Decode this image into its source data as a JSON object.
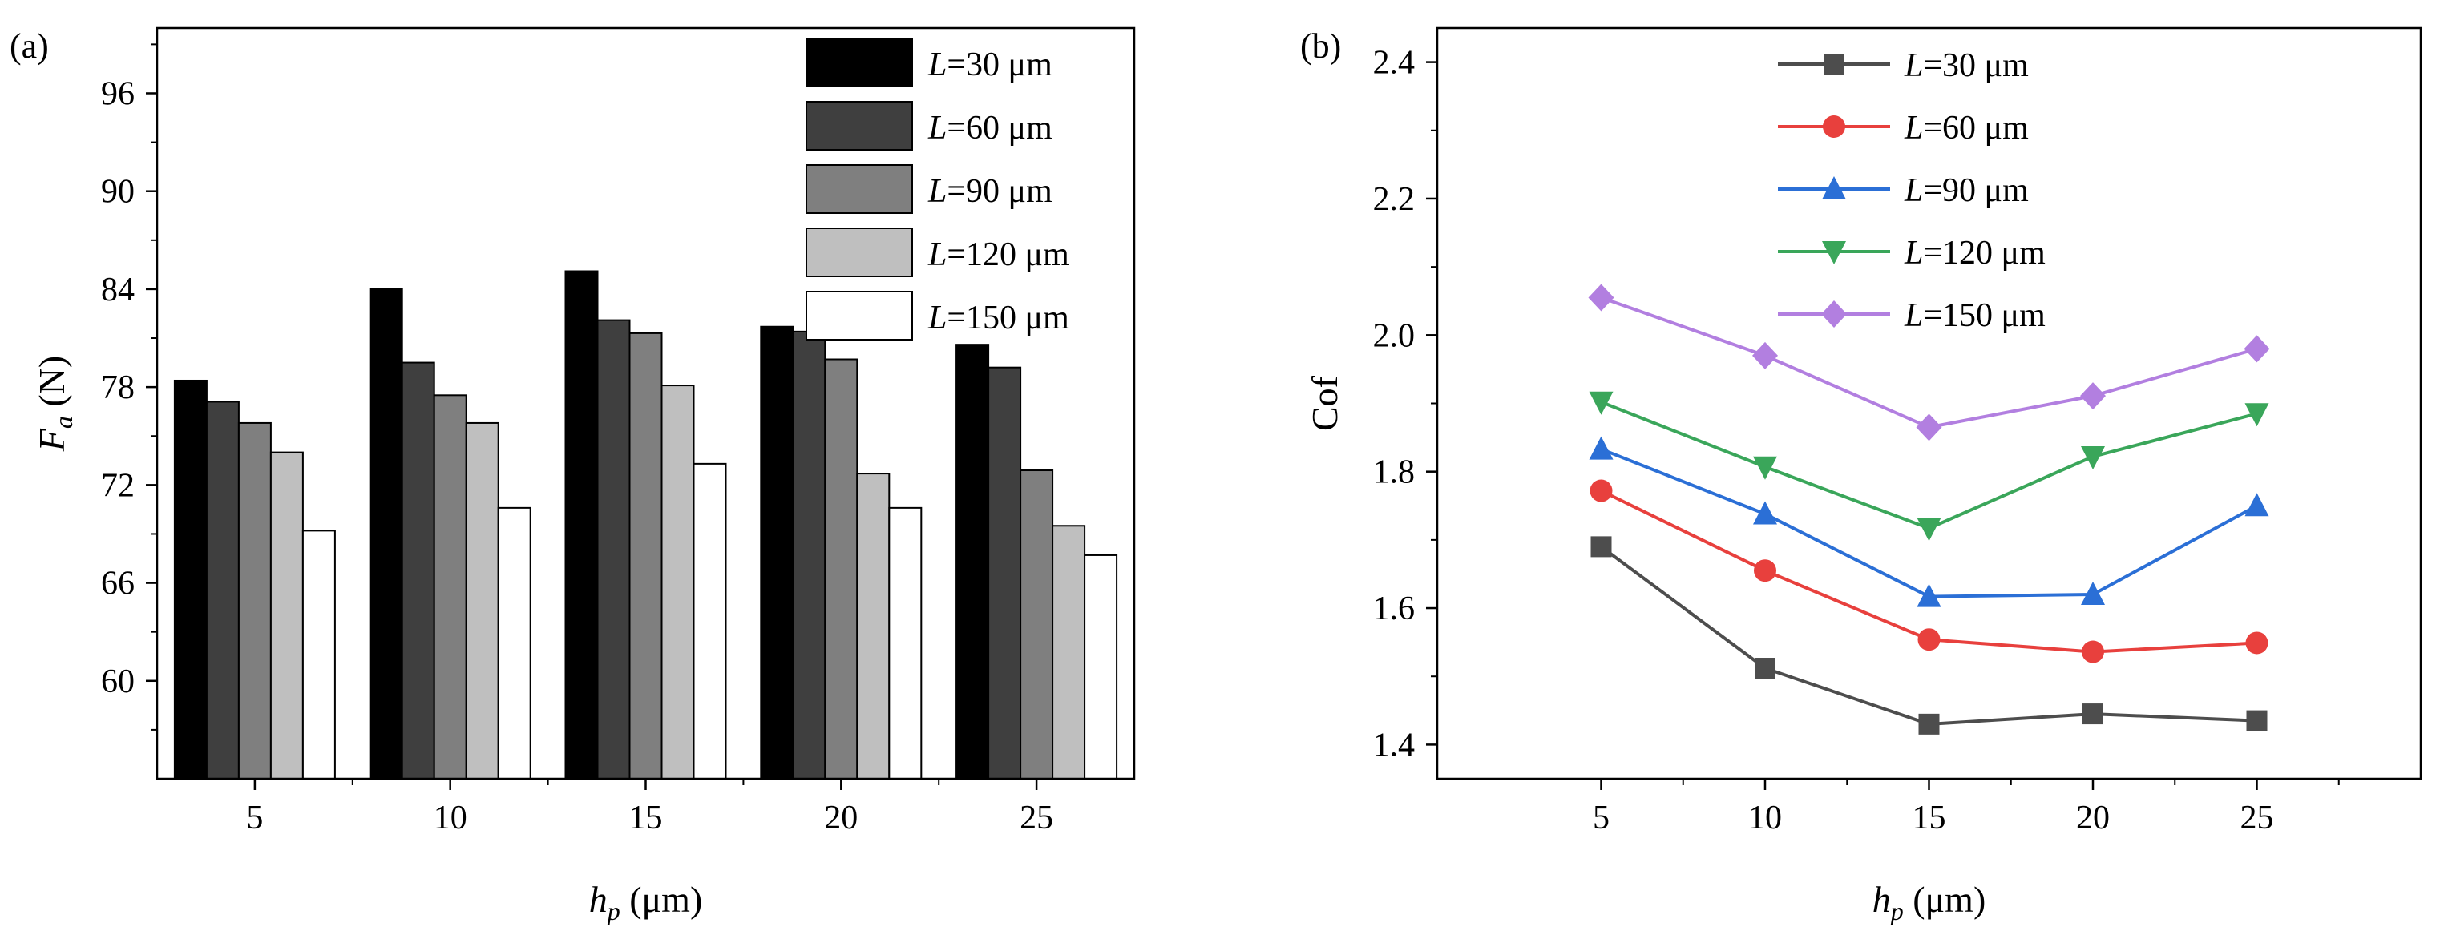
{
  "charts": [
    {
      "panel_label": "(a)",
      "chart_data": {
        "type": "bar",
        "categories": [
          "5",
          "10",
          "15",
          "20",
          "25"
        ],
        "series": [
          {
            "name": "L=30 μm",
            "name_var": "L",
            "name_rest": "=30 μm",
            "color": "#000000",
            "values": [
              78.4,
              84.0,
              85.1,
              81.7,
              80.6
            ]
          },
          {
            "name": "L=60 μm",
            "name_var": "L",
            "name_rest": "=60 μm",
            "color": "#3f3f3f",
            "values": [
              77.1,
              79.5,
              82.1,
              81.4,
              79.2
            ]
          },
          {
            "name": "L=90 μm",
            "name_var": "L",
            "name_rest": "=90 μm",
            "color": "#7f7f7f",
            "values": [
              75.8,
              77.5,
              81.3,
              79.7,
              72.9
            ]
          },
          {
            "name": "L=120 μm",
            "name_var": "L",
            "name_rest": "=120 μm",
            "color": "#bfbfbf",
            "values": [
              74.0,
              75.8,
              78.1,
              72.7,
              69.5
            ]
          },
          {
            "name": "L=150 μm",
            "name_var": "L",
            "name_rest": "=150 μm",
            "color": "#ffffff",
            "values": [
              69.2,
              70.6,
              73.3,
              70.6,
              67.7
            ]
          }
        ],
        "ylim": [
          54,
          100
        ],
        "yticks": [
          "60",
          "66",
          "72",
          "78",
          "84",
          "90",
          "96"
        ],
        "ytick_values": [
          60,
          66,
          72,
          78,
          84,
          90,
          96
        ],
        "xlabel_var": "h",
        "xlabel_sub": "p",
        "xlabel_rest": " (μm)",
        "ylabel_var": "F",
        "ylabel_sub": "a",
        "ylabel_rest": " (N)",
        "legend_position": "top-right",
        "grid": false
      }
    },
    {
      "panel_label": "(b)",
      "chart_data": {
        "type": "line",
        "x": [
          5,
          10,
          15,
          20,
          25
        ],
        "xticks": [
          "5",
          "10",
          "15",
          "20",
          "25"
        ],
        "series": [
          {
            "name": "L=30 μm",
            "name_var": "L",
            "name_rest": "=30 μm",
            "color": "#4d4d4d",
            "marker": "square",
            "values": [
              1.69,
              1.512,
              1.43,
              1.445,
              1.435
            ]
          },
          {
            "name": "L=60 μm",
            "name_var": "L",
            "name_rest": "=60 μm",
            "color": "#e8403d",
            "marker": "circle",
            "values": [
              1.772,
              1.655,
              1.554,
              1.536,
              1.549
            ]
          },
          {
            "name": "L=90 μm",
            "name_var": "L",
            "name_rest": "=90 μm",
            "color": "#2b6fd6",
            "marker": "triangle-up",
            "values": [
              1.833,
              1.738,
              1.617,
              1.62,
              1.75
            ]
          },
          {
            "name": "L=120 μm",
            "name_var": "L",
            "name_rest": "=120 μm",
            "color": "#3aa65a",
            "marker": "triangle-down",
            "values": [
              1.902,
              1.807,
              1.717,
              1.822,
              1.885
            ]
          },
          {
            "name": "L=150 μm",
            "name_var": "L",
            "name_rest": "=150 μm",
            "color": "#b27fe0",
            "marker": "diamond",
            "values": [
              2.055,
              1.97,
              1.865,
              1.911,
              1.98
            ]
          }
        ],
        "xlim": [
          0,
          30
        ],
        "ylim": [
          1.35,
          2.45
        ],
        "yticks": [
          "1.4",
          "1.6",
          "1.8",
          "2.0",
          "2.2",
          "2.4"
        ],
        "ytick_values": [
          1.4,
          1.6,
          1.8,
          2.0,
          2.2,
          2.4
        ],
        "xlabel_var": "h",
        "xlabel_sub": "p",
        "xlabel_rest": " (μm)",
        "ylabel": "Cof",
        "legend_position": "top-center",
        "grid": false
      }
    }
  ]
}
